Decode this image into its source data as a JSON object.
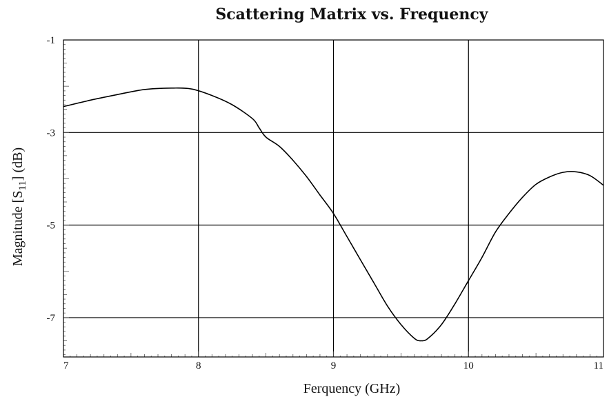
{
  "chart_data": {
    "type": "line",
    "title": "Scattering Matrix vs. Frequency",
    "xlabel": "Ferquency (GHz)",
    "ylabel": "Magnitude [S11] (dB)",
    "ylabel_parts": {
      "pre": "Magnitude [S",
      "sub": "11",
      "post": "] (dB)"
    },
    "xlim": [
      7,
      11
    ],
    "ylim": [
      -7.85,
      -1
    ],
    "x_ticks": [
      "7",
      "8",
      "9",
      "10",
      "11"
    ],
    "x_tick_values": [
      7,
      8,
      9,
      10,
      11
    ],
    "y_ticks": [
      "-1",
      "-3",
      "-5",
      "-7"
    ],
    "y_tick_values": [
      -1,
      -3,
      -5,
      -7
    ],
    "grid": true,
    "series": [
      {
        "x": [
          7.0,
          7.2,
          7.4,
          7.6,
          7.8,
          7.95,
          8.1,
          8.25,
          8.4,
          8.45,
          8.5,
          8.6,
          8.7,
          8.8,
          8.9,
          9.0,
          9.1,
          9.2,
          9.3,
          9.4,
          9.5,
          9.6,
          9.65,
          9.7,
          9.8,
          9.9,
          10.0,
          10.1,
          10.2,
          10.3,
          10.4,
          10.5,
          10.6,
          10.7,
          10.8,
          10.9,
          11.0
        ],
        "y": [
          -2.44,
          -2.3,
          -2.18,
          -2.07,
          -2.04,
          -2.06,
          -2.2,
          -2.4,
          -2.7,
          -2.9,
          -3.1,
          -3.3,
          -3.6,
          -3.95,
          -4.35,
          -4.75,
          -5.25,
          -5.75,
          -6.25,
          -6.75,
          -7.15,
          -7.45,
          -7.5,
          -7.45,
          -7.15,
          -6.7,
          -6.2,
          -5.7,
          -5.15,
          -4.75,
          -4.4,
          -4.12,
          -3.96,
          -3.86,
          -3.85,
          -3.93,
          -4.14
        ]
      }
    ]
  }
}
